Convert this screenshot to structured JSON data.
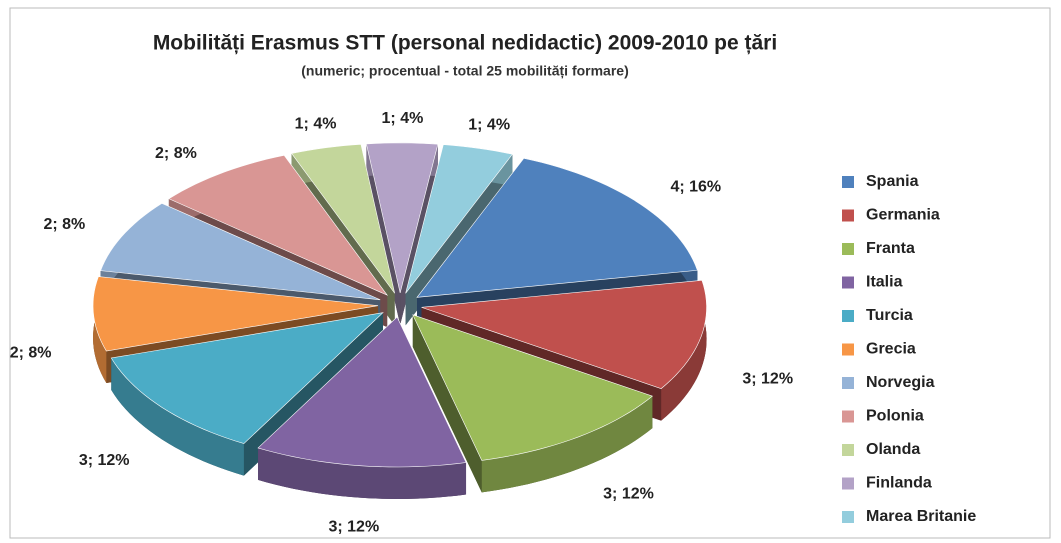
{
  "chart_data": {
    "type": "pie",
    "title": "Mobilități Erasmus STT (personal nedidactic) 2009-2010 pe țări",
    "subtitle": "(numeric; procentual - total 25 mobilități formare)",
    "categories": [
      "Spania",
      "Germania",
      "Franta",
      "Italia",
      "Turcia",
      "Grecia",
      "Norvegia",
      "Polonia",
      "Olanda",
      "Finlanda",
      "Marea Britanie"
    ],
    "values": [
      4,
      3,
      3,
      3,
      3,
      2,
      2,
      2,
      1,
      1,
      1
    ],
    "value_labels": [
      "4; 16%",
      "3; 12%",
      "3; 12%",
      "3; 12%",
      "3; 12%",
      "2; 8%",
      "2; 8%",
      "2; 8%",
      "1; 4%",
      "1; 4%",
      "1; 4%"
    ],
    "colors": [
      "#4f81bd",
      "#c0504d",
      "#9bbb59",
      "#8064a2",
      "#4bacc6",
      "#f79646",
      "#95b3d7",
      "#d99694",
      "#c3d69b",
      "#b3a2c7",
      "#93cddd"
    ],
    "legend": "right"
  }
}
